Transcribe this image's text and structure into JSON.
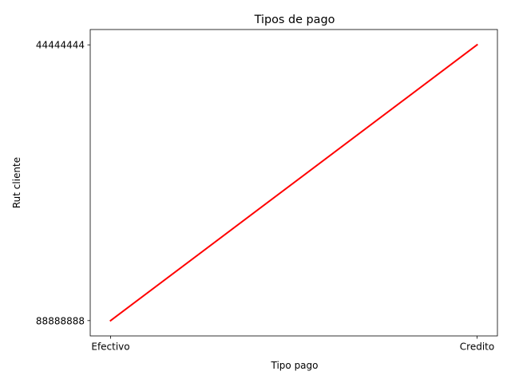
{
  "chart_data": {
    "type": "line",
    "title": "Tipos de pago",
    "xlabel": "Tipo pago",
    "ylabel": "Rut cliente",
    "categories": [
      "Efectivo",
      "Credito"
    ],
    "y_categories": [
      "88888888",
      "44444444"
    ],
    "series": [
      {
        "x": [
          "Efectivo",
          "Credito"
        ],
        "y": [
          "88888888",
          "44444444"
        ],
        "color": "#ff0000"
      }
    ],
    "grid": false,
    "legend": "none"
  }
}
